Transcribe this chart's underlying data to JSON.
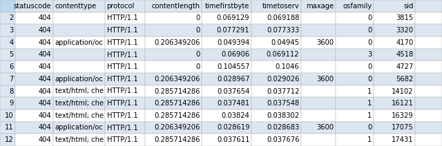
{
  "columns": [
    "statuscode",
    "contenttype",
    "protocol",
    "contentlength",
    "timefirstbyte",
    "timetoserv",
    "maxage",
    "osfamily",
    "sid",
    ""
  ],
  "col_widths_norm": [
    30,
    60,
    75,
    55,
    95,
    85,
    85,
    55,
    60,
    60,
    30
  ],
  "rows": [
    [
      "2",
      "404",
      "",
      "HTTP/1.1",
      "0",
      "0.069129",
      "0.069188",
      "",
      "0",
      "3815",
      ""
    ],
    [
      "3",
      "404",
      "",
      "HTTP/1.1",
      "0",
      "0.077291",
      "0.077333",
      "",
      "0",
      "3320",
      ""
    ],
    [
      "4",
      "404",
      "application/oс",
      "HTTP/1.1",
      "0.206349206",
      "0.049394",
      "0.04945",
      "3600",
      "0",
      "4170",
      ""
    ],
    [
      "5",
      "404",
      "",
      "HTTP/1.1",
      "0",
      "0.06906",
      "0.069112",
      "",
      "3",
      "4518",
      ""
    ],
    [
      "6",
      "404",
      "",
      "HTTP/1.1",
      "0",
      "0.104557",
      "0.1046",
      "",
      "0",
      "4727",
      ""
    ],
    [
      "7",
      "404",
      "application/oс",
      "HTTP/1.1",
      "0.206349206",
      "0.028967",
      "0.029026",
      "3600",
      "0",
      "5682",
      ""
    ],
    [
      "8",
      "404",
      "text/html; chе",
      "HTTP/1.1",
      "0.285714286",
      "0.037654",
      "0.037712",
      "",
      "1",
      "14102",
      ""
    ],
    [
      "9",
      "404",
      "text/html; chе",
      "HTTP/1.1",
      "0.285714286",
      "0.037481",
      "0.037548",
      "",
      "1",
      "16121",
      ""
    ],
    [
      "10",
      "404",
      "text/html; chе",
      "HTTP/1.1",
      "0.285714286",
      "0.03824",
      "0.038302",
      "",
      "1",
      "16329",
      ""
    ],
    [
      "11",
      "404",
      "application/oс",
      "HTTP/1.1",
      "0.206349206",
      "0.028619",
      "0.028683",
      "3600",
      "0",
      "17075",
      ""
    ],
    [
      "12",
      "404",
      "text/html; chе",
      "HTTP/1.1",
      "0.285714286",
      "0.037611",
      "0.037676",
      "",
      "1",
      "17431",
      ""
    ]
  ],
  "header_bg": "#dce6f1",
  "row_bg_even": "#ffffff",
  "row_bg_odd": "#dce6f1",
  "rownum_bg": "#dce6f1",
  "rownum_header_bg": "#bdd7ee",
  "grid_color": "#aaaaaa",
  "text_color": "#000000",
  "header_fontsize": 7.2,
  "cell_fontsize": 7.2,
  "fig_bg": "#ffffff",
  "fig_width": 6.4,
  "fig_height": 2.12
}
